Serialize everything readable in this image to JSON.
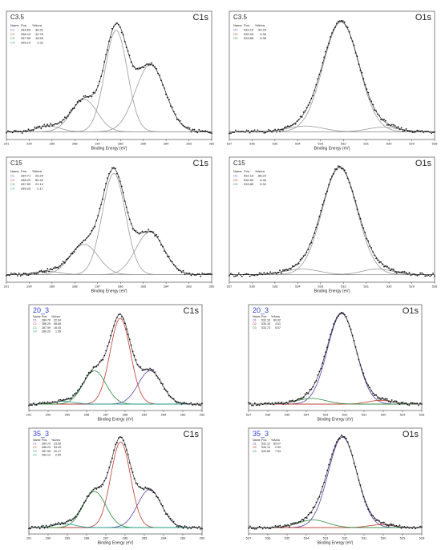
{
  "colors": {
    "C1": "#5b3fa6",
    "C2": "#c0392b",
    "C3": "#2e8b3d",
    "C4": "#1a9c8a",
    "O1": "#5b3fa6",
    "O2": "#c0392b",
    "O3": "#2e8b3d",
    "gray_component": "#9a9a9a",
    "envelope_gray": "#444444",
    "envelope_blue": "#2020c8",
    "sample_blue": "#2b3fd6"
  },
  "chart_data": [
    {
      "type": "scatter",
      "sample": "C3.5",
      "orbital": "C1s",
      "xlabel": "Binding Energy (eV)",
      "xlim": [
        291,
        282
      ],
      "xticks": [
        291,
        290,
        289,
        288,
        287,
        286,
        285,
        284,
        283,
        282
      ],
      "legend_header": [
        "Name",
        "Pos.",
        "%Area"
      ],
      "components": [
        {
          "name": "C1",
          "pos": "284.69",
          "area": "38.31",
          "center": 284.69,
          "height": 0.58,
          "fwhm": 1.55
        },
        {
          "name": "C2",
          "pos": "286.19",
          "area": "42.78",
          "center": 286.19,
          "height": 0.88,
          "fwhm": 1.15
        },
        {
          "name": "C3",
          "pos": "287.59",
          "area": "16.59",
          "center": 287.59,
          "height": 0.28,
          "fwhm": 1.35
        },
        {
          "name": "C4",
          "pos": "289.14",
          "area": "2.31",
          "center": 289.14,
          "height": 0.05,
          "fwhm": 1.2
        }
      ]
    },
    {
      "type": "scatter",
      "sample": "C3.5",
      "orbital": "O1s",
      "xlabel": "Binding Energy (eV)",
      "xlim": [
        537,
        528
      ],
      "xticks": [
        537,
        536,
        535,
        534,
        533,
        532,
        531,
        530,
        529,
        528
      ],
      "legend_header": [
        "Name",
        "Pos.",
        "%Area"
      ],
      "components": [
        {
          "name": "O1",
          "pos": "532.10",
          "area": "90.25",
          "center": 532.1,
          "height": 0.95,
          "fwhm": 1.85
        },
        {
          "name": "O2",
          "pos": "530.26",
          "area": "4.36",
          "center": 530.26,
          "height": 0.04,
          "fwhm": 1.6
        },
        {
          "name": "O3",
          "pos": "533.65",
          "area": "5.38",
          "center": 533.65,
          "height": 0.05,
          "fwhm": 1.8
        }
      ]
    },
    {
      "type": "scatter",
      "sample": "C15",
      "orbital": "C1s",
      "xlabel": "Binding Energy (eV)",
      "xlim": [
        291,
        282
      ],
      "xticks": [
        291,
        290,
        289,
        288,
        287,
        286,
        285,
        284,
        283,
        282
      ],
      "legend_header": [
        "Name",
        "Pos.",
        "%Area"
      ],
      "components": [
        {
          "name": "C1",
          "pos": "284.71",
          "area": "26.29",
          "center": 284.71,
          "height": 0.38,
          "fwhm": 1.45
        },
        {
          "name": "C2",
          "pos": "286.29",
          "area": "50.42",
          "center": 286.29,
          "height": 0.9,
          "fwhm": 1.2
        },
        {
          "name": "C3",
          "pos": "287.59",
          "area": "21.12",
          "center": 287.59,
          "height": 0.27,
          "fwhm": 1.45
        },
        {
          "name": "C4",
          "pos": "289.20",
          "area": "2.17",
          "center": 289.2,
          "height": 0.03,
          "fwhm": 1.3
        }
      ]
    },
    {
      "type": "scatter",
      "sample": "C15",
      "orbital": "O1s",
      "xlabel": "Binding Energy (eV)",
      "xlim": [
        537,
        528
      ],
      "xticks": [
        537,
        536,
        535,
        534,
        533,
        532,
        531,
        530,
        529,
        528
      ],
      "legend_header": [
        "Name",
        "Pos.",
        "%Area"
      ],
      "components": [
        {
          "name": "O1",
          "pos": "532.16",
          "area": "88.22",
          "center": 532.16,
          "height": 0.95,
          "fwhm": 1.8
        },
        {
          "name": "O2",
          "pos": "530.50",
          "area": "6.46",
          "center": 530.5,
          "height": 0.05,
          "fwhm": 1.6
        },
        {
          "name": "O3",
          "pos": "533.80",
          "area": "5.32",
          "center": 533.8,
          "height": 0.05,
          "fwhm": 1.8
        }
      ]
    },
    {
      "type": "scatter",
      "sample": "20_3",
      "orbital": "C1s",
      "xlabel": "Binding Energy (eV)",
      "xlim": [
        291,
        282
      ],
      "xticks": [
        291,
        290,
        289,
        288,
        287,
        286,
        285,
        284,
        283,
        282
      ],
      "legend_header": [
        "Name",
        "Pos.",
        "%Area"
      ],
      "components": [
        {
          "name": "C1",
          "pos": "284.70",
          "area": "22.04",
          "center": 284.7,
          "height": 0.35,
          "fwhm": 1.45
        },
        {
          "name": "C2",
          "pos": "286.25",
          "area": "58.65",
          "center": 286.25,
          "height": 0.9,
          "fwhm": 1.25
        },
        {
          "name": "C3",
          "pos": "287.59",
          "area": "16.45",
          "center": 287.59,
          "height": 0.35,
          "fwhm": 1.4
        },
        {
          "name": "C4",
          "pos": "289.20",
          "area": "1.55",
          "center": 289.2,
          "height": 0.03,
          "fwhm": 1.3
        }
      ]
    },
    {
      "type": "scatter",
      "sample": "20_3",
      "orbital": "O1s",
      "xlabel": "Binding Energy (eV)",
      "xlim": [
        537,
        528
      ],
      "xticks": [
        537,
        536,
        535,
        534,
        533,
        532,
        531,
        530,
        529,
        528
      ],
      "legend_header": [
        "Name",
        "Pos.",
        "%Area"
      ],
      "components": [
        {
          "name": "O1",
          "pos": "532.16",
          "area": "89.92",
          "center": 532.16,
          "height": 0.95,
          "fwhm": 1.75
        },
        {
          "name": "O2",
          "pos": "530.16",
          "area": "4.51",
          "center": 530.16,
          "height": 0.04,
          "fwhm": 1.5
        },
        {
          "name": "O3",
          "pos": "533.73",
          "area": "5.57",
          "center": 533.73,
          "height": 0.06,
          "fwhm": 1.8
        }
      ]
    },
    {
      "type": "scatter",
      "sample": "35_3",
      "orbital": "C1s",
      "xlabel": "Binding Energy (eV)",
      "xlim": [
        291,
        282
      ],
      "xticks": [
        291,
        290,
        289,
        288,
        287,
        286,
        285,
        284,
        283,
        282
      ],
      "legend_header": [
        "Name",
        "Pos.",
        "%Area"
      ],
      "components": [
        {
          "name": "C1",
          "pos": "284.73",
          "area": "23.59",
          "center": 284.73,
          "height": 0.4,
          "fwhm": 1.45
        },
        {
          "name": "C2",
          "pos": "286.23",
          "area": "53.49",
          "center": 286.23,
          "height": 0.9,
          "fwhm": 1.2
        },
        {
          "name": "C3",
          "pos": "287.59",
          "area": "20.17",
          "center": 287.59,
          "height": 0.38,
          "fwhm": 1.4
        },
        {
          "name": "C4",
          "pos": "289.14",
          "area": "2.95",
          "center": 289.14,
          "height": 0.04,
          "fwhm": 1.3
        }
      ]
    },
    {
      "type": "scatter",
      "sample": "35_3",
      "orbital": "O1s",
      "xlabel": "Binding Energy (eV)",
      "xlim": [
        537,
        528
      ],
      "xticks": [
        537,
        536,
        535,
        534,
        533,
        532,
        531,
        530,
        529,
        528
      ],
      "legend_header": [
        "Name",
        "Pos.",
        "%Area"
      ],
      "components": [
        {
          "name": "O1",
          "pos": "532.12",
          "area": "89.07",
          "center": 532.12,
          "height": 0.95,
          "fwhm": 1.75
        },
        {
          "name": "O2",
          "pos": "530.13",
          "area": "2.99",
          "center": 530.13,
          "height": 0.03,
          "fwhm": 1.5
        },
        {
          "name": "O3",
          "pos": "533.65",
          "area": "7.94",
          "center": 533.65,
          "height": 0.08,
          "fwhm": 1.8
        }
      ]
    }
  ]
}
